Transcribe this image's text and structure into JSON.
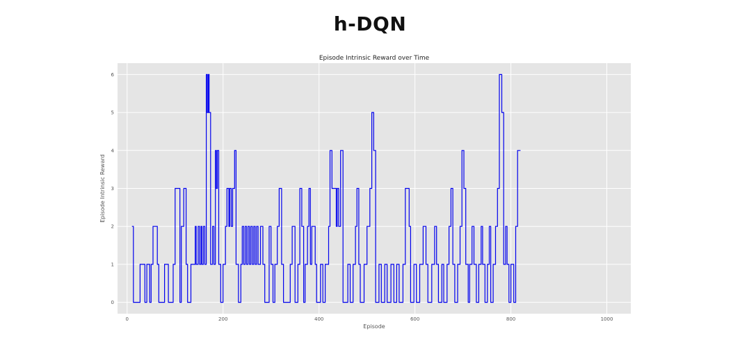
{
  "page": {
    "heading": "h-DQN"
  },
  "colors": {
    "plot_bg": "#e5e5e5",
    "grid": "#ffffff",
    "line": "#0000ee"
  },
  "chart_data": {
    "type": "line",
    "title": "Episode Intrinsic Reward over Time",
    "xlabel": "Episode",
    "ylabel": "Episode Intrinsic Reward",
    "xlim": [
      -20,
      1050
    ],
    "ylim": [
      -0.3,
      6.3
    ],
    "xticks": [
      0,
      200,
      400,
      600,
      800,
      1000
    ],
    "yticks": [
      0,
      1,
      2,
      3,
      4,
      5,
      6
    ],
    "grid": true,
    "series": [
      {
        "steps": [
          [
            10,
            2
          ],
          [
            13,
            0
          ],
          [
            27,
            1
          ],
          [
            37,
            0
          ],
          [
            41,
            1
          ],
          [
            47,
            0
          ],
          [
            50,
            1
          ],
          [
            54,
            2
          ],
          [
            63,
            1
          ],
          [
            66,
            0
          ],
          [
            72,
            0
          ],
          [
            78,
            1
          ],
          [
            86,
            0
          ],
          [
            96,
            1
          ],
          [
            100,
            3
          ],
          [
            110,
            0
          ],
          [
            113,
            2
          ],
          [
            118,
            3
          ],
          [
            123,
            1
          ],
          [
            126,
            0
          ],
          [
            133,
            1
          ],
          [
            142,
            2
          ],
          [
            144,
            1
          ],
          [
            148,
            2
          ],
          [
            151,
            1
          ],
          [
            154,
            2
          ],
          [
            156,
            1
          ],
          [
            159,
            2
          ],
          [
            162,
            1
          ],
          [
            165,
            6
          ],
          [
            167,
            5
          ],
          [
            169,
            6
          ],
          [
            171,
            5
          ],
          [
            174,
            1
          ],
          [
            178,
            2
          ],
          [
            181,
            1
          ],
          [
            184,
            4
          ],
          [
            186,
            3
          ],
          [
            188,
            4
          ],
          [
            191,
            1
          ],
          [
            195,
            0
          ],
          [
            200,
            1
          ],
          [
            205,
            2
          ],
          [
            208,
            3
          ],
          [
            212,
            2
          ],
          [
            214,
            3
          ],
          [
            217,
            2
          ],
          [
            220,
            3
          ],
          [
            224,
            4
          ],
          [
            227,
            1
          ],
          [
            232,
            0
          ],
          [
            237,
            1
          ],
          [
            240,
            2
          ],
          [
            243,
            1
          ],
          [
            246,
            2
          ],
          [
            249,
            1
          ],
          [
            252,
            2
          ],
          [
            255,
            1
          ],
          [
            258,
            2
          ],
          [
            261,
            1
          ],
          [
            264,
            2
          ],
          [
            267,
            1
          ],
          [
            270,
            2
          ],
          [
            273,
            1
          ],
          [
            278,
            2
          ],
          [
            283,
            1
          ],
          [
            287,
            0
          ],
          [
            296,
            2
          ],
          [
            300,
            1
          ],
          [
            304,
            0
          ],
          [
            308,
            1
          ],
          [
            313,
            2
          ],
          [
            317,
            3
          ],
          [
            322,
            1
          ],
          [
            326,
            0
          ],
          [
            340,
            1
          ],
          [
            344,
            2
          ],
          [
            350,
            0
          ],
          [
            356,
            1
          ],
          [
            360,
            3
          ],
          [
            364,
            2
          ],
          [
            368,
            0
          ],
          [
            371,
            1
          ],
          [
            376,
            2
          ],
          [
            379,
            3
          ],
          [
            382,
            1
          ],
          [
            385,
            2
          ],
          [
            388,
            2
          ],
          [
            392,
            1
          ],
          [
            395,
            0
          ],
          [
            403,
            1
          ],
          [
            408,
            0
          ],
          [
            413,
            1
          ],
          [
            420,
            2
          ],
          [
            423,
            4
          ],
          [
            427,
            3
          ],
          [
            436,
            2
          ],
          [
            438,
            3
          ],
          [
            441,
            2
          ],
          [
            445,
            4
          ],
          [
            450,
            0
          ],
          [
            460,
            1
          ],
          [
            465,
            0
          ],
          [
            471,
            1
          ],
          [
            476,
            2
          ],
          [
            479,
            3
          ],
          [
            483,
            1
          ],
          [
            486,
            0
          ],
          [
            494,
            1
          ],
          [
            500,
            2
          ],
          [
            506,
            3
          ],
          [
            510,
            5
          ],
          [
            514,
            4
          ],
          [
            518,
            0
          ],
          [
            525,
            1
          ],
          [
            530,
            0
          ],
          [
            537,
            1
          ],
          [
            542,
            0
          ],
          [
            550,
            1
          ],
          [
            556,
            0
          ],
          [
            562,
            1
          ],
          [
            567,
            0
          ],
          [
            575,
            1
          ],
          [
            580,
            3
          ],
          [
            584,
            3
          ],
          [
            588,
            2
          ],
          [
            591,
            0
          ],
          [
            598,
            1
          ],
          [
            603,
            0
          ],
          [
            610,
            1
          ],
          [
            617,
            2
          ],
          [
            623,
            1
          ],
          [
            627,
            0
          ],
          [
            635,
            1
          ],
          [
            641,
            2
          ],
          [
            645,
            1
          ],
          [
            649,
            0
          ],
          [
            656,
            1
          ],
          [
            660,
            0
          ],
          [
            667,
            1
          ],
          [
            671,
            2
          ],
          [
            675,
            3
          ],
          [
            679,
            1
          ],
          [
            683,
            0
          ],
          [
            689,
            1
          ],
          [
            694,
            2
          ],
          [
            698,
            4
          ],
          [
            702,
            3
          ],
          [
            706,
            1
          ],
          [
            711,
            0
          ],
          [
            714,
            1
          ],
          [
            719,
            2
          ],
          [
            723,
            1
          ],
          [
            728,
            0
          ],
          [
            733,
            1
          ],
          [
            738,
            2
          ],
          [
            741,
            1
          ],
          [
            746,
            0
          ],
          [
            751,
            1
          ],
          [
            755,
            2
          ],
          [
            758,
            0
          ],
          [
            763,
            1
          ],
          [
            768,
            2
          ],
          [
            772,
            3
          ],
          [
            776,
            6
          ],
          [
            781,
            5
          ],
          [
            785,
            1
          ],
          [
            789,
            2
          ],
          [
            792,
            1
          ],
          [
            796,
            0
          ],
          [
            800,
            1
          ],
          [
            806,
            0
          ],
          [
            810,
            2
          ],
          [
            814,
            4
          ],
          [
            818,
            4
          ]
        ]
      }
    ]
  }
}
